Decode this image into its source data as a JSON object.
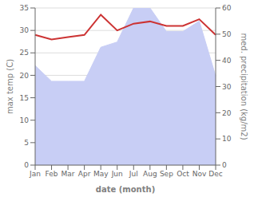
{
  "chart_data": {
    "type": "line",
    "xlabel": "date (month)",
    "ylabel": "max temp (C)",
    "y2label": "med. precipitation (kg/m2)",
    "categories": [
      "Jan",
      "Feb",
      "Mar",
      "Apr",
      "May",
      "Jun",
      "Jul",
      "Aug",
      "Sep",
      "Oct",
      "Nov",
      "Dec"
    ],
    "series": [
      {
        "type": "area",
        "axis": "y2",
        "color": "#c8cef5",
        "values": [
          38,
          32,
          32,
          32,
          45,
          47,
          60,
          60,
          51,
          51,
          55,
          34
        ]
      },
      {
        "type": "line",
        "color": "#cc3333",
        "values": [
          29.0,
          28.0,
          28.5,
          29.0,
          33.5,
          30.0,
          31.5,
          32.0,
          31.0,
          31.0,
          32.5,
          29.0
        ]
      }
    ],
    "ylim": [
      0,
      35
    ],
    "yticks": [
      0,
      5,
      10,
      15,
      20,
      25,
      30,
      35
    ],
    "y2lim": [
      0,
      60
    ],
    "y2ticks": [
      0,
      10,
      20,
      30,
      40,
      50,
      60
    ],
    "grid": "y"
  }
}
